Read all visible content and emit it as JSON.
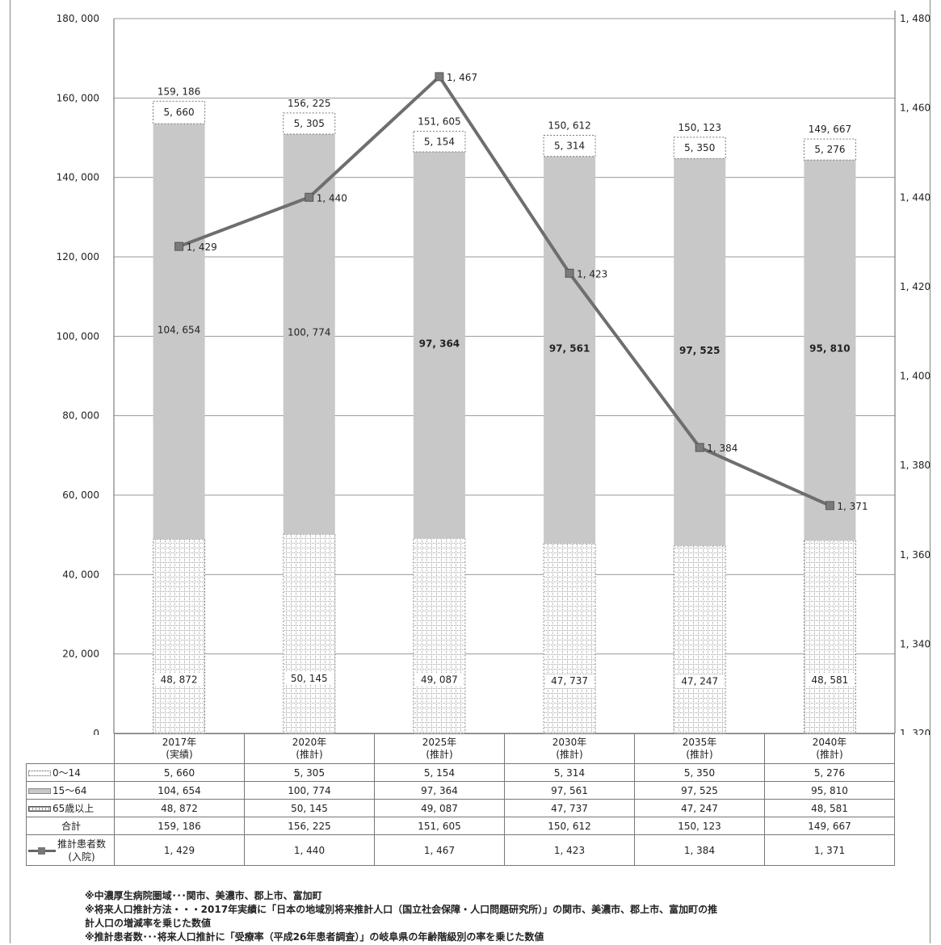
{
  "chart_data": {
    "type": "bar",
    "stacked": true,
    "categories": [
      "2017年",
      "2020年",
      "2025年",
      "2030年",
      "2035年",
      "2040年"
    ],
    "category_notes": [
      "(実績)",
      "(推計)",
      "(推計)",
      "(推計)",
      "(推計)",
      "(推計)"
    ],
    "series": [
      {
        "name": "65歳以上",
        "values": [
          48872,
          50145,
          49087,
          47737,
          47247,
          48581
        ],
        "labels": [
          "48, 872",
          "50, 145",
          "49, 087",
          "47, 737",
          "47, 247",
          "48, 581"
        ]
      },
      {
        "name": "15～64",
        "values": [
          104654,
          100774,
          97364,
          97561,
          97525,
          95810
        ],
        "labels": [
          "104, 654",
          "100, 774",
          "97, 364",
          "97, 561",
          "97, 525",
          "95, 810"
        ]
      },
      {
        "name": "0～14",
        "values": [
          5660,
          5305,
          5154,
          5314,
          5350,
          5276
        ],
        "labels": [
          "5, 660",
          "5, 305",
          "5, 154",
          "5, 314",
          "5, 350",
          "5, 276"
        ]
      }
    ],
    "totals": [
      159186,
      156225,
      151605,
      150612,
      150123,
      149667
    ],
    "total_labels": [
      "159, 186",
      "156, 225",
      "151, 605",
      "150, 612",
      "150, 123",
      "149, 667"
    ],
    "line_series": {
      "name": "推計患者数",
      "name_line2": "(入院)",
      "axis": "right",
      "values": [
        1429,
        1440,
        1467,
        1423,
        1384,
        1371
      ],
      "labels": [
        "1, 429",
        "1, 440",
        "1, 467",
        "1, 423",
        "1, 384",
        "1, 371"
      ]
    },
    "left_axis": {
      "ylim": [
        0,
        180000
      ],
      "ticks": [
        "0",
        "20, 000",
        "40, 000",
        "60, 000",
        "80, 000",
        "100, 000",
        "120, 000",
        "140, 000",
        "160, 000",
        "180, 000"
      ]
    },
    "right_axis": {
      "ylim": [
        1320,
        1480
      ],
      "ticks": [
        "1, 320",
        "1, 340",
        "1, 360",
        "1, 380",
        "1, 400",
        "1, 420",
        "1, 440",
        "1, 460",
        "1, 480"
      ]
    },
    "grid": "horizontal",
    "colors": {
      "work_age": "#c8c8c8",
      "line": "#6e6e6e",
      "marker": "#7a7a7a"
    }
  },
  "table": {
    "rows": [
      {
        "key": "young",
        "label": "0～14",
        "cells": [
          "5, 660",
          "5, 305",
          "5, 154",
          "5, 314",
          "5, 350",
          "5, 276"
        ]
      },
      {
        "key": "work",
        "label": "15～64",
        "cells": [
          "104, 654",
          "100, 774",
          "97, 364",
          "97, 561",
          "97, 525",
          "95, 810"
        ]
      },
      {
        "key": "old",
        "label": "65歳以上",
        "cells": [
          "48, 872",
          "50, 145",
          "49, 087",
          "47, 737",
          "47, 247",
          "48, 581"
        ]
      },
      {
        "key": "total",
        "label": "合計",
        "cells": [
          "159, 186",
          "156, 225",
          "151, 605",
          "150, 612",
          "150, 123",
          "149, 667"
        ]
      },
      {
        "key": "patients",
        "label": "推計患者数",
        "label2": "(入院)",
        "cells": [
          "1, 429",
          "1, 440",
          "1, 467",
          "1, 423",
          "1, 384",
          "1, 371"
        ]
      }
    ]
  },
  "notes": [
    "※中濃厚生病院圏域･･･関市、美濃市、郡上市、富加町",
    "※将来人口推計方法・・・2017年実績に「日本の地域別将来推計人口（国立社会保障・人口問題研究所）」の関市、美濃市、郡上市、富加町の推",
    "計人口の増減率を乗じた数値",
    "※推計患者数･･･将来人口推計に「受療率（平成26年患者調査）」の岐阜県の年齢階級別の率を乗じた数値"
  ]
}
